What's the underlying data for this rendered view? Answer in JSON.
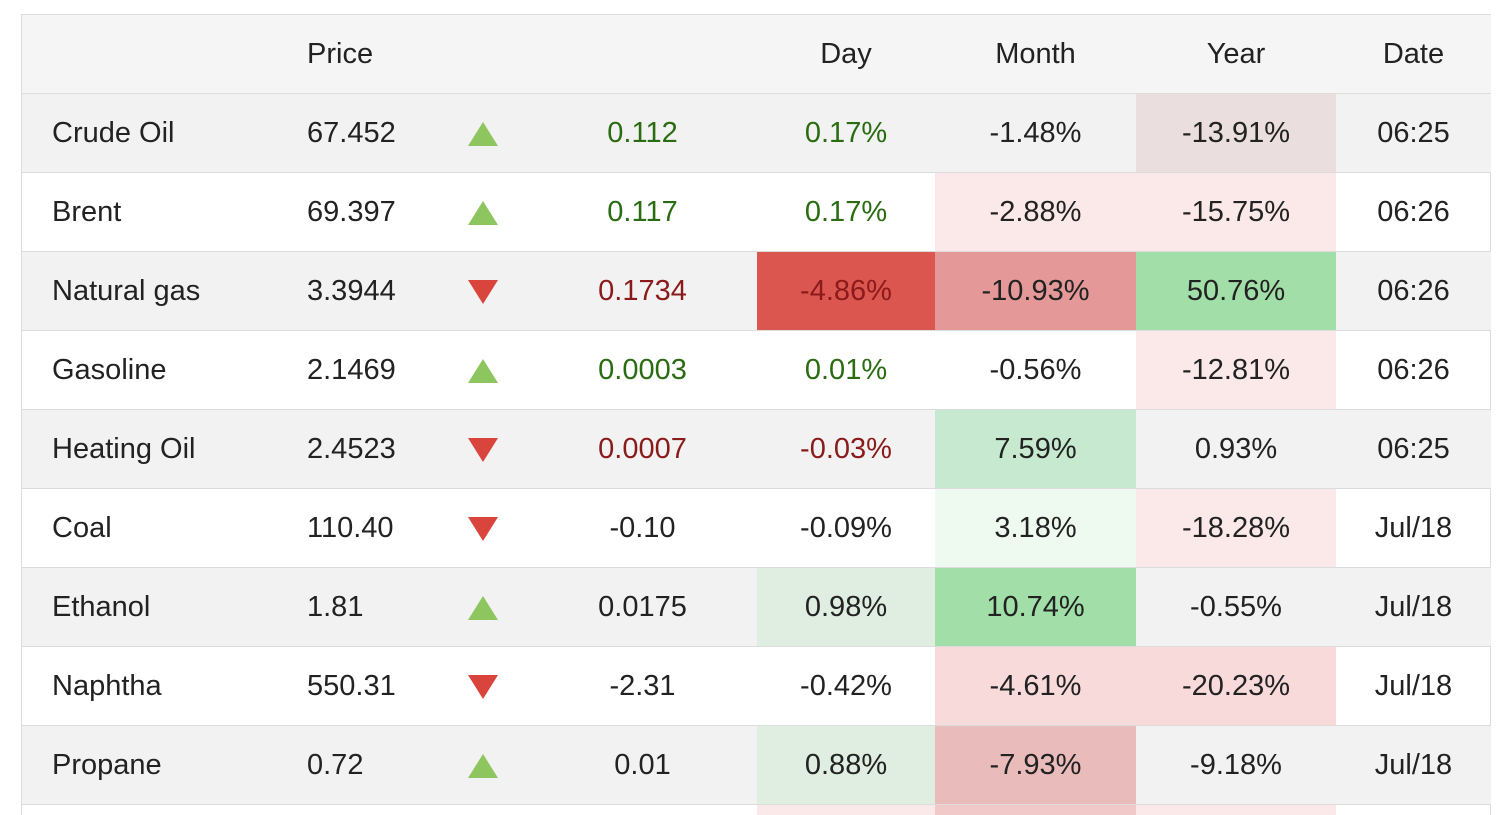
{
  "header": {
    "name": "",
    "price": "Price",
    "arrow": "",
    "change": "",
    "day": "Day",
    "month": "Month",
    "year": "Year",
    "date": "Date"
  },
  "rows": [
    {
      "name": "Crude Oil",
      "price": "67.452",
      "direction": "up",
      "change": "0.112",
      "change_dir": "up",
      "day": "0.17%",
      "day_dir": "up",
      "day_bg": "",
      "month": "-1.48%",
      "month_bg": "",
      "year": "-13.91%",
      "year_bg": "#ebdede",
      "date": "06:25"
    },
    {
      "name": "Brent",
      "price": "69.397",
      "direction": "up",
      "change": "0.117",
      "change_dir": "up",
      "day": "0.17%",
      "day_dir": "up",
      "day_bg": "",
      "month": "-2.88%",
      "month_bg": "#fbe8e8",
      "year": "-15.75%",
      "year_bg": "#fbe8e8",
      "date": "06:26"
    },
    {
      "name": "Natural gas",
      "price": "3.3944",
      "direction": "down",
      "change": "0.1734",
      "change_dir": "down",
      "day": "-4.86%",
      "day_dir": "down",
      "day_bg": "#dc5650",
      "month": "-10.93%",
      "month_bg": "#e49898",
      "year": "50.76%",
      "year_bg": "#a2dea8",
      "date": "06:26"
    },
    {
      "name": "Gasoline",
      "price": "2.1469",
      "direction": "up",
      "change": "0.0003",
      "change_dir": "up",
      "day": "0.01%",
      "day_dir": "up",
      "day_bg": "",
      "month": "-0.56%",
      "month_bg": "",
      "year": "-12.81%",
      "year_bg": "#fbe8e8",
      "date": "06:26"
    },
    {
      "name": "Heating Oil",
      "price": "2.4523",
      "direction": "down",
      "change": "0.0007",
      "change_dir": "down",
      "day": "-0.03%",
      "day_dir": "down",
      "day_bg": "",
      "month": "7.59%",
      "month_bg": "#c6e9cf",
      "year": "0.93%",
      "year_bg": "",
      "date": "06:25"
    },
    {
      "name": "Coal",
      "price": "110.40",
      "direction": "down",
      "change": "-0.10",
      "change_dir": "neutral",
      "day": "-0.09%",
      "day_dir": "neutral",
      "day_bg": "",
      "month": "3.18%",
      "month_bg": "#eef9f0",
      "year": "-18.28%",
      "year_bg": "#fbe8e8",
      "date": "Jul/18"
    },
    {
      "name": "Ethanol",
      "price": "1.81",
      "direction": "up",
      "change": "0.0175",
      "change_dir": "neutral",
      "day": "0.98%",
      "day_dir": "neutral",
      "day_bg": "#e0eee2",
      "month": "10.74%",
      "month_bg": "#a2dea8",
      "year": "-0.55%",
      "year_bg": "",
      "date": "Jul/18"
    },
    {
      "name": "Naphtha",
      "price": "550.31",
      "direction": "down",
      "change": "-2.31",
      "change_dir": "neutral",
      "day": "-0.42%",
      "day_dir": "neutral",
      "day_bg": "",
      "month": "-4.61%",
      "month_bg": "#f8dada",
      "year": "-20.23%",
      "year_bg": "#f8dada",
      "date": "Jul/18"
    },
    {
      "name": "Propane",
      "price": "0.72",
      "direction": "up",
      "change": "0.01",
      "change_dir": "neutral",
      "day": "0.88%",
      "day_dir": "neutral",
      "day_bg": "#e0eee2",
      "month": "-7.93%",
      "month_bg": "#eabbbb",
      "year": "-9.18%",
      "year_bg": "",
      "date": "Jul/18"
    }
  ],
  "next_row": {
    "day_bg": "#fbe8e8",
    "month_bg": "#f2c9c9",
    "year_bg": "#fbe8e8"
  }
}
